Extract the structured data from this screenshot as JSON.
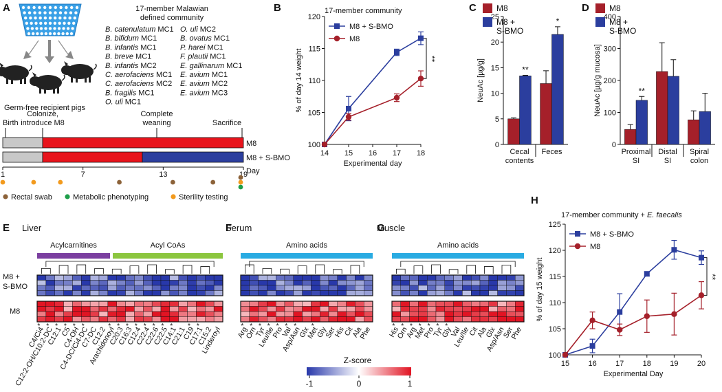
{
  "panel_letters": {
    "A": "A",
    "B": "B",
    "C": "C",
    "D": "D",
    "E": "E",
    "F": "F",
    "G": "G",
    "H": "H"
  },
  "panel_a": {
    "community_title_1": "17-member Malawian",
    "community_title_2": "defined community",
    "strains_col1": [
      {
        "sp": "B. catenulatum",
        "tag": "MC1"
      },
      {
        "sp": "B. bifidum",
        "tag": "MC1"
      },
      {
        "sp": "B. infantis",
        "tag": "MC1"
      },
      {
        "sp": "B. breve",
        "tag": "MC1"
      },
      {
        "sp": "B. infantis",
        "tag": "MC2"
      },
      {
        "sp": "C. aerofaciens",
        "tag": "MC1"
      },
      {
        "sp": "C. aerofaciens",
        "tag": "MC2"
      },
      {
        "sp": "B. fragilis",
        "tag": "MC1"
      },
      {
        "sp": "O. uli",
        "tag": "MC1"
      }
    ],
    "strains_col2": [
      {
        "sp": "O. uli",
        "tag": "MC2"
      },
      {
        "sp": "B. ovatus",
        "tag": "MC1"
      },
      {
        "sp": "P. harei",
        "tag": "MC1"
      },
      {
        "sp": "F. plautii",
        "tag": "MC1"
      },
      {
        "sp": "E. gallinarum",
        "tag": "MC1"
      },
      {
        "sp": "E. avium",
        "tag": "MC1"
      },
      {
        "sp": "E. avium",
        "tag": "MC2"
      },
      {
        "sp": "E. avium",
        "tag": "MC3"
      }
    ],
    "pigs_label": "Germ-free recipient pigs",
    "timeline": {
      "birth": "Birth",
      "colonize_1": "Colonize,",
      "colonize_2": "introduce M8",
      "weaning_1": "Complete",
      "weaning_2": "weaning",
      "sacrifice": "Sacrifice",
      "bar1_label": "M8",
      "bar2_label": "M8 + S-BMO",
      "ticks": [
        "1",
        "7",
        "13",
        "19"
      ],
      "day_label": "Day",
      "colors": {
        "gray": "#c8c8c8",
        "red": "#e8141c",
        "blue": "#2b3e9e"
      }
    },
    "legend": [
      {
        "label": "Rectal swab",
        "color": "#8c6239"
      },
      {
        "label": "Metabolic phenotyping",
        "color": "#1e9e4a"
      },
      {
        "label": "Sterility testing",
        "color": "#f29a1d"
      }
    ]
  },
  "colors": {
    "m8": "#a5202a",
    "sbmo": "#2b3e9e",
    "m8_line": "#a5202a",
    "sbmo_line": "#2b3e9e"
  },
  "panel_b": {
    "chart_data": {
      "type": "line",
      "title": "17-member community",
      "xlabel": "Experimental day",
      "ylabel": "% of day 14 weight",
      "xlim": [
        14,
        18
      ],
      "ylim": [
        100,
        120
      ],
      "xticks": [
        "14",
        "15",
        "16",
        "17",
        "18"
      ],
      "yticks": [
        "100",
        "105",
        "110",
        "115",
        "120"
      ],
      "series": [
        {
          "name": "M8 + S-BMO",
          "x": [
            14,
            15,
            17,
            18
          ],
          "values": [
            100,
            105.6,
            114.4,
            116.6
          ],
          "err": [
            0,
            1.9,
            0.5,
            1.0
          ]
        },
        {
          "name": "M8",
          "x": [
            14,
            15,
            17,
            18
          ],
          "values": [
            100,
            104.3,
            107.3,
            110.3
          ],
          "err": [
            0,
            0.5,
            0.6,
            1.2
          ]
        }
      ],
      "significance": "**"
    }
  },
  "panel_c": {
    "chart_data": {
      "type": "bar",
      "ylabel": "NeuAc [µg/g]",
      "ylim": [
        0,
        25
      ],
      "yticks": [
        "0",
        "5",
        "10",
        "15",
        "20",
        "25"
      ],
      "categories": [
        [
          "Cecal",
          "contents"
        ],
        [
          "Feces"
        ]
      ],
      "series": [
        {
          "name": "M8",
          "values": [
            5.0,
            11.9
          ],
          "err": [
            0.2,
            2.5
          ]
        },
        {
          "name": "M8 + S-BMO",
          "values": [
            13.4,
            21.5
          ],
          "err": [
            0.1,
            1.5
          ]
        }
      ],
      "significance": [
        "**",
        "*"
      ],
      "legend": [
        {
          "l1": "M8",
          "l2": ""
        },
        {
          "l1": "M8 +",
          "l2": "S-BMO"
        }
      ]
    }
  },
  "panel_d": {
    "chart_data": {
      "type": "bar",
      "ylabel": "NeuAc [µg/g mucosa]",
      "ylim": [
        0,
        400
      ],
      "yticks": [
        "0",
        "100",
        "200",
        "300",
        "400"
      ],
      "categories": [
        [
          "Proximal",
          "SI"
        ],
        [
          "Distal",
          "SI"
        ],
        [
          "Spiral",
          "colon"
        ]
      ],
      "series": [
        {
          "name": "M8",
          "values": [
            47,
            228,
            77
          ],
          "err": [
            15,
            90,
            28
          ]
        },
        {
          "name": "M8 + S-BMO",
          "values": [
            138,
            213,
            103
          ],
          "err": [
            12,
            52,
            57
          ]
        }
      ],
      "significance": [
        "**",
        "",
        ""
      ],
      "legend": [
        {
          "l1": "M8",
          "l2": ""
        },
        {
          "l1": "M8 +",
          "l2": "S-BMO"
        }
      ]
    }
  },
  "heatmaps": {
    "zscore_label": "Z-score",
    "zscore_ticks": [
      "-1",
      "0",
      "1"
    ],
    "row_labels": {
      "sbmo_1": "M8 +",
      "sbmo_2": "S-BMO",
      "m8": "M8"
    },
    "E": {
      "title": "Liver",
      "groups": [
        {
          "label": "Acylcarnitines",
          "color": "#7b3fa0",
          "n": 8
        },
        {
          "label": "Acyl CoAs",
          "color": "#8cc63f",
          "n": 12
        }
      ],
      "columns": [
        "C4/Ci4",
        "C12:2-OH/C10:2-DC",
        "C12:1",
        "C5",
        "C4-OH",
        "C4-DC/Ci4-DC",
        "C7-DC",
        "C12:2",
        "Arachidonoyl",
        "C20:3",
        "C16:3",
        "C12:4",
        "C22:4",
        "C22:6",
        "C22:5",
        "C14:1",
        "C21:1",
        "C19",
        "C17:1",
        "C15:2",
        "Linderoyl"
      ],
      "stars": [
        "*",
        "*",
        "*",
        "*",
        "*",
        "*",
        "",
        "",
        "*",
        "*",
        "*",
        "*",
        "*",
        "*",
        "*",
        "*",
        "",
        "*",
        "*",
        "",
        ""
      ],
      "star_colors": [
        "#e8141c",
        "#111",
        "#111",
        "#111",
        "#111",
        "#111",
        "",
        "",
        "#111",
        "#111",
        "#111",
        "#111",
        "#111",
        "#111",
        "#111",
        "#111",
        "",
        "#111",
        "#111",
        "",
        ""
      ]
    },
    "F": {
      "title": "Serum",
      "groups": [
        {
          "label": "Amino acids",
          "color": "#29abe2",
          "n": 1
        }
      ],
      "columns": [
        "Arg",
        "Orn",
        "Tyr",
        "Leu/Ile",
        "Pro",
        "Val",
        "Asp/Asn",
        "Glx",
        "Met",
        "Gly",
        "Ser",
        "His",
        "Cit",
        "Ala",
        "Phe"
      ],
      "stars": [
        "*",
        "*",
        "*",
        "*",
        "*",
        "*",
        "*",
        "",
        "*",
        "",
        "",
        "",
        "",
        "",
        ""
      ],
      "star_colors": [
        "#e8141c",
        "#e8141c",
        "#e8141c",
        "#e8141c",
        "#e8141c",
        "#e8141c",
        "#e8141c",
        "",
        "#e8141c",
        "",
        "",
        "",
        "",
        "",
        ""
      ]
    },
    "G": {
      "title": "Muscle",
      "groups": [
        {
          "label": "Amino acids",
          "color": "#29abe2",
          "n": 1
        }
      ],
      "columns": [
        "His",
        "Orn",
        "Arg",
        "Met",
        "Pro",
        "Tyr",
        "Gly",
        "Val",
        "Leu/Ile",
        "Cit",
        "Ala",
        "Glx",
        "Asp/Asn",
        "Ser",
        "Phe"
      ],
      "stars": [
        "*",
        "*",
        "*",
        "*",
        "*",
        "*",
        "*",
        "",
        "",
        "",
        "",
        "",
        "",
        "",
        ""
      ],
      "star_colors": [
        "#e8141c",
        "#e8141c",
        "#e8141c",
        "#e8141c",
        "#e8141c",
        "#e8141c",
        "#e8141c",
        "",
        "",
        "",
        "",
        "",
        "",
        "",
        ""
      ]
    }
  },
  "panel_h": {
    "chart_data": {
      "type": "line",
      "title": "17-member community + E. faecalis",
      "xlabel": "Experimental Day",
      "ylabel": "% of day 15 weight",
      "xlim": [
        15,
        20
      ],
      "ylim": [
        100,
        125
      ],
      "xticks": [
        "15",
        "16",
        "17",
        "18",
        "19",
        "20"
      ],
      "yticks": [
        "100",
        "105",
        "110",
        "115",
        "120",
        "125"
      ],
      "series": [
        {
          "name": "M8 + S-BMO",
          "x": [
            15,
            16,
            17,
            18,
            19,
            20
          ],
          "values": [
            100,
            101.7,
            108.2,
            115.5,
            120.1,
            118.6
          ],
          "err": [
            0,
            1.3,
            3.5,
            0.4,
            1.8,
            1.3
          ]
        },
        {
          "name": "M8",
          "x": [
            15,
            16,
            17,
            18,
            19,
            20
          ],
          "values": [
            100,
            106.6,
            104.8,
            107.4,
            107.8,
            111.4
          ],
          "err": [
            0,
            1.6,
            1.1,
            3.1,
            4.0,
            2.6
          ]
        }
      ],
      "significance": "**"
    }
  }
}
